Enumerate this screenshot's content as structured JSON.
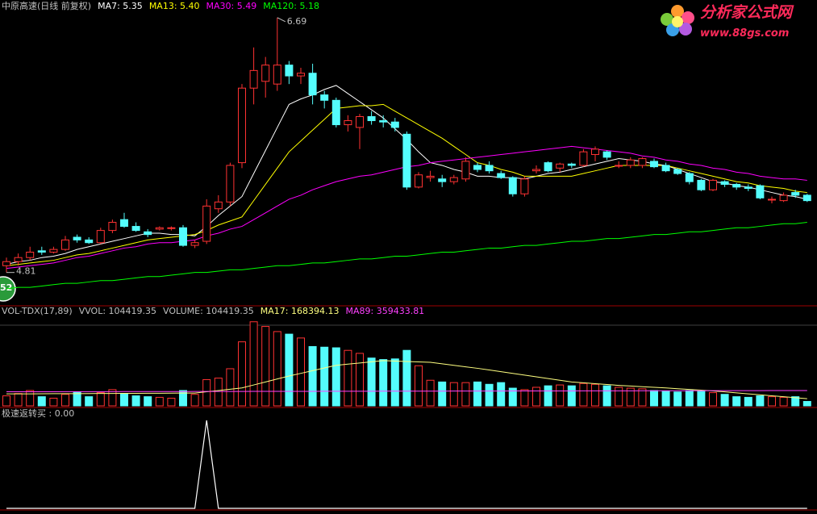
{
  "chart_data": [
    {
      "type": "candlestick",
      "title": "中原高速(日线 前复权)",
      "ylim": [
        4.57,
        6.82
      ],
      "up_color": "#ff3232",
      "down_color": "#54fcfc",
      "candles": [
        [
          4.86,
          4.92,
          4.81,
          4.89
        ],
        [
          4.89,
          4.95,
          4.86,
          4.92
        ],
        [
          4.92,
          5.0,
          4.9,
          4.96
        ],
        [
          4.97,
          5.0,
          4.94,
          4.96
        ],
        [
          4.96,
          5.0,
          4.95,
          4.98
        ],
        [
          4.98,
          5.08,
          4.97,
          5.05
        ],
        [
          5.07,
          5.09,
          5.03,
          5.05
        ],
        [
          5.05,
          5.07,
          5.02,
          5.03
        ],
        [
          5.03,
          5.14,
          5.02,
          5.12
        ],
        [
          5.12,
          5.2,
          5.1,
          5.18
        ],
        [
          5.2,
          5.25,
          5.14,
          5.15
        ],
        [
          5.15,
          5.18,
          5.11,
          5.12
        ],
        [
          5.11,
          5.13,
          5.07,
          5.09
        ],
        [
          5.13,
          5.15,
          5.12,
          5.14
        ],
        [
          5.14,
          5.15,
          5.12,
          5.14
        ],
        [
          5.14,
          5.16,
          5.0,
          5.01
        ],
        [
          5.01,
          5.05,
          4.99,
          5.03
        ],
        [
          5.04,
          5.35,
          5.02,
          5.3
        ],
        [
          5.28,
          5.38,
          5.25,
          5.33
        ],
        [
          5.33,
          5.62,
          5.3,
          5.6
        ],
        [
          5.62,
          6.2,
          5.58,
          6.17
        ],
        [
          6.17,
          6.47,
          6.05,
          6.3
        ],
        [
          6.22,
          6.4,
          6.1,
          6.34
        ],
        [
          6.2,
          6.69,
          6.15,
          6.34
        ],
        [
          6.34,
          6.37,
          6.2,
          6.26
        ],
        [
          6.26,
          6.32,
          6.2,
          6.28
        ],
        [
          6.28,
          6.35,
          6.05,
          6.12
        ],
        [
          6.12,
          6.15,
          6.02,
          6.08
        ],
        [
          6.08,
          6.1,
          5.88,
          5.9
        ],
        [
          5.9,
          5.97,
          5.85,
          5.93
        ],
        [
          5.88,
          5.98,
          5.72,
          5.96
        ],
        [
          5.96,
          6.0,
          5.9,
          5.93
        ],
        [
          5.93,
          5.97,
          5.88,
          5.92
        ],
        [
          5.92,
          5.95,
          5.85,
          5.88
        ],
        [
          5.83,
          5.85,
          5.42,
          5.44
        ],
        [
          5.44,
          5.55,
          5.43,
          5.53
        ],
        [
          5.51,
          5.56,
          5.48,
          5.52
        ],
        [
          5.5,
          5.53,
          5.44,
          5.48
        ],
        [
          5.48,
          5.53,
          5.46,
          5.51
        ],
        [
          5.5,
          5.66,
          5.48,
          5.63
        ],
        [
          5.6,
          5.62,
          5.55,
          5.57
        ],
        [
          5.6,
          5.63,
          5.54,
          5.56
        ],
        [
          5.54,
          5.56,
          5.5,
          5.51
        ],
        [
          5.51,
          5.52,
          5.37,
          5.39
        ],
        [
          5.39,
          5.52,
          5.37,
          5.5
        ],
        [
          5.56,
          5.6,
          5.54,
          5.57
        ],
        [
          5.62,
          5.63,
          5.55,
          5.56
        ],
        [
          5.58,
          5.62,
          5.55,
          5.61
        ],
        [
          5.61,
          5.62,
          5.58,
          5.6
        ],
        [
          5.6,
          5.72,
          5.59,
          5.7
        ],
        [
          5.68,
          5.74,
          5.63,
          5.72
        ],
        [
          5.7,
          5.71,
          5.64,
          5.66
        ],
        [
          5.6,
          5.63,
          5.58,
          5.6
        ],
        [
          5.6,
          5.66,
          5.58,
          5.64
        ],
        [
          5.6,
          5.66,
          5.58,
          5.65
        ],
        [
          5.63,
          5.65,
          5.58,
          5.59
        ],
        [
          5.6,
          5.62,
          5.55,
          5.56
        ],
        [
          5.57,
          5.58,
          5.53,
          5.54
        ],
        [
          5.54,
          5.55,
          5.46,
          5.48
        ],
        [
          5.49,
          5.5,
          5.41,
          5.42
        ],
        [
          5.42,
          5.5,
          5.41,
          5.49
        ],
        [
          5.48,
          5.49,
          5.44,
          5.46
        ],
        [
          5.46,
          5.47,
          5.42,
          5.44
        ],
        [
          5.44,
          5.46,
          5.41,
          5.43
        ],
        [
          5.45,
          5.46,
          5.35,
          5.36
        ],
        [
          5.35,
          5.37,
          5.32,
          5.35
        ],
        [
          5.34,
          5.4,
          5.33,
          5.38
        ],
        [
          5.4,
          5.42,
          5.36,
          5.38
        ],
        [
          5.38,
          5.39,
          5.33,
          5.34
        ]
      ],
      "annotations": [
        6.69,
        4.81
      ],
      "series": [
        {
          "name": "MA7: 5.35",
          "color": "#ffffff",
          "values": [
            4.87,
            4.89,
            4.9,
            4.92,
            4.93,
            4.95,
            4.98,
            5.0,
            5.02,
            5.04,
            5.06,
            5.08,
            5.1,
            5.1,
            5.09,
            5.09,
            5.08,
            5.15,
            5.23,
            5.3,
            5.37,
            5.54,
            5.71,
            5.88,
            6.05,
            6.09,
            6.12,
            6.16,
            6.19,
            6.13,
            6.07,
            6.01,
            5.95,
            5.87,
            5.79,
            5.7,
            5.62,
            5.6,
            5.57,
            5.55,
            5.52,
            5.52,
            5.51,
            5.51,
            5.5,
            5.52,
            5.54,
            5.55,
            5.57,
            5.59,
            5.61,
            5.63,
            5.65,
            5.64,
            5.63,
            5.61,
            5.6,
            5.57,
            5.54,
            5.51,
            5.48,
            5.47,
            5.45,
            5.44,
            5.42,
            5.4,
            5.38,
            5.37,
            5.35
          ]
        },
        {
          "name": "MA13: 5.40",
          "color": "#ffff00",
          "values": [
            4.86,
            4.87,
            4.88,
            4.89,
            4.9,
            4.92,
            4.94,
            4.95,
            4.97,
            4.99,
            5.01,
            5.03,
            5.05,
            5.06,
            5.07,
            5.08,
            5.09,
            5.12,
            5.16,
            5.19,
            5.22,
            5.34,
            5.46,
            5.58,
            5.7,
            5.78,
            5.86,
            5.94,
            6.02,
            6.03,
            6.04,
            6.04,
            6.05,
            6.0,
            5.95,
            5.9,
            5.85,
            5.8,
            5.74,
            5.68,
            5.62,
            5.6,
            5.57,
            5.55,
            5.52,
            5.52,
            5.52,
            5.52,
            5.52,
            5.54,
            5.56,
            5.58,
            5.6,
            5.6,
            5.6,
            5.6,
            5.6,
            5.58,
            5.56,
            5.54,
            5.52,
            5.5,
            5.48,
            5.47,
            5.45,
            5.44,
            5.43,
            5.41,
            5.4
          ]
        },
        {
          "name": "MA30: 5.49",
          "color": "#ff00ff",
          "values": [
            4.84,
            4.85,
            4.86,
            4.87,
            4.88,
            4.9,
            4.92,
            4.93,
            4.95,
            4.97,
            4.99,
            5.0,
            5.02,
            5.03,
            5.03,
            5.04,
            5.05,
            5.08,
            5.1,
            5.13,
            5.15,
            5.2,
            5.25,
            5.3,
            5.35,
            5.38,
            5.42,
            5.45,
            5.48,
            5.5,
            5.52,
            5.53,
            5.55,
            5.57,
            5.59,
            5.6,
            5.62,
            5.63,
            5.64,
            5.65,
            5.66,
            5.67,
            5.68,
            5.69,
            5.7,
            5.71,
            5.72,
            5.73,
            5.74,
            5.73,
            5.72,
            5.71,
            5.7,
            5.69,
            5.67,
            5.66,
            5.64,
            5.63,
            5.61,
            5.6,
            5.58,
            5.57,
            5.55,
            5.54,
            5.52,
            5.51,
            5.5,
            5.5,
            5.49
          ]
        },
        {
          "name": "MA120: 5.18",
          "color": "#00ff00",
          "values": [
            4.69,
            4.7,
            4.7,
            4.71,
            4.72,
            4.73,
            4.73,
            4.74,
            4.75,
            4.75,
            4.76,
            4.77,
            4.78,
            4.78,
            4.79,
            4.8,
            4.81,
            4.81,
            4.82,
            4.83,
            4.83,
            4.84,
            4.85,
            4.86,
            4.86,
            4.87,
            4.88,
            4.88,
            4.89,
            4.9,
            4.91,
            4.91,
            4.92,
            4.93,
            4.93,
            4.94,
            4.95,
            4.96,
            4.96,
            4.97,
            4.98,
            4.99,
            4.99,
            5.0,
            5.01,
            5.01,
            5.02,
            5.03,
            5.04,
            5.04,
            5.05,
            5.06,
            5.06,
            5.07,
            5.08,
            5.09,
            5.09,
            5.1,
            5.11,
            5.11,
            5.12,
            5.13,
            5.14,
            5.14,
            5.15,
            5.16,
            5.17,
            5.17,
            5.18
          ]
        }
      ]
    },
    {
      "type": "bar",
      "title": "VOL-TDX(17,89)",
      "subtitle": "VVOL: 104419.35",
      "name": "VOLUME: 104419.35",
      "ylim": [
        0,
        2230000
      ],
      "values": [
        235000,
        290000,
        360000,
        215000,
        180000,
        270000,
        325000,
        215000,
        310000,
        380000,
        290000,
        235000,
        215000,
        200000,
        180000,
        360000,
        270000,
        615000,
        650000,
        870000,
        1500000,
        1970000,
        1860000,
        1740000,
        1680000,
        1590000,
        1390000,
        1375000,
        1360000,
        1300000,
        1230000,
        1120000,
        1085000,
        1100000,
        1300000,
        940000,
        600000,
        560000,
        545000,
        545000,
        560000,
        505000,
        545000,
        415000,
        380000,
        435000,
        470000,
        490000,
        470000,
        525000,
        505000,
        470000,
        435000,
        415000,
        400000,
        360000,
        345000,
        325000,
        360000,
        345000,
        310000,
        270000,
        215000,
        200000,
        235000,
        215000,
        200000,
        215000,
        104419.35
      ],
      "series": [
        {
          "name": "MA17: 168394.13",
          "color": "#ffff80",
          "values": [
            280000,
            281000,
            282000,
            284000,
            285000,
            286000,
            287000,
            289000,
            290000,
            291000,
            292000,
            294000,
            295000,
            296000,
            297000,
            299000,
            300000,
            330000,
            360000,
            390000,
            420000,
            490000,
            560000,
            630000,
            700000,
            762000,
            825000,
            888000,
            950000,
            978000,
            1005000,
            1032000,
            1060000,
            1050000,
            1040000,
            1030000,
            1020000,
            985000,
            950000,
            915000,
            880000,
            840000,
            800000,
            760000,
            720000,
            680000,
            640000,
            600000,
            560000,
            540000,
            520000,
            500000,
            480000,
            465000,
            450000,
            435000,
            420000,
            402000,
            385000,
            368000,
            350000,
            328000,
            305000,
            282000,
            260000,
            237000,
            214000,
            191000,
            168394.13
          ]
        },
        {
          "name": "MA89: 359433.81",
          "color": "#ff40ff",
          "values": [
            330000,
            330400,
            330900,
            331300,
            331700,
            332100,
            332600,
            333000,
            333400,
            333900,
            334300,
            334700,
            335200,
            335600,
            336000,
            336400,
            336900,
            337300,
            337700,
            338200,
            338600,
            339000,
            339500,
            339900,
            340300,
            340700,
            341200,
            341600,
            342000,
            342500,
            342900,
            343300,
            343800,
            344200,
            344600,
            345000,
            345500,
            345900,
            346300,
            346800,
            347200,
            347600,
            348100,
            348500,
            348900,
            349300,
            349800,
            350200,
            350600,
            351100,
            351500,
            351900,
            352400,
            352800,
            353200,
            353600,
            354100,
            354500,
            354900,
            355400,
            355800,
            356200,
            356700,
            357100,
            357500,
            357900,
            358400,
            358800,
            359433.81
          ]
        }
      ]
    },
    {
      "type": "line",
      "title": "极速返转买 : 0.00",
      "color": "#ffffff",
      "ylim": [
        0,
        1.1
      ],
      "values": [
        0,
        0,
        0,
        0,
        0,
        0,
        0,
        0,
        0,
        0,
        0,
        0,
        0,
        0,
        0,
        0,
        0,
        1,
        0,
        0,
        0,
        0,
        0,
        0,
        0,
        0,
        0,
        0,
        0,
        0,
        0,
        0,
        0,
        0,
        0,
        0,
        0,
        0,
        0,
        0,
        0,
        0,
        0,
        0,
        0,
        0,
        0,
        0,
        0,
        0,
        0,
        0,
        0,
        0,
        0,
        0,
        0,
        0,
        0,
        0,
        0,
        0,
        0,
        0,
        0,
        0,
        0,
        0,
        0
      ]
    }
  ],
  "logo": {
    "title": "分析家公式网",
    "url": "www.88gs.com"
  },
  "badge": "52"
}
